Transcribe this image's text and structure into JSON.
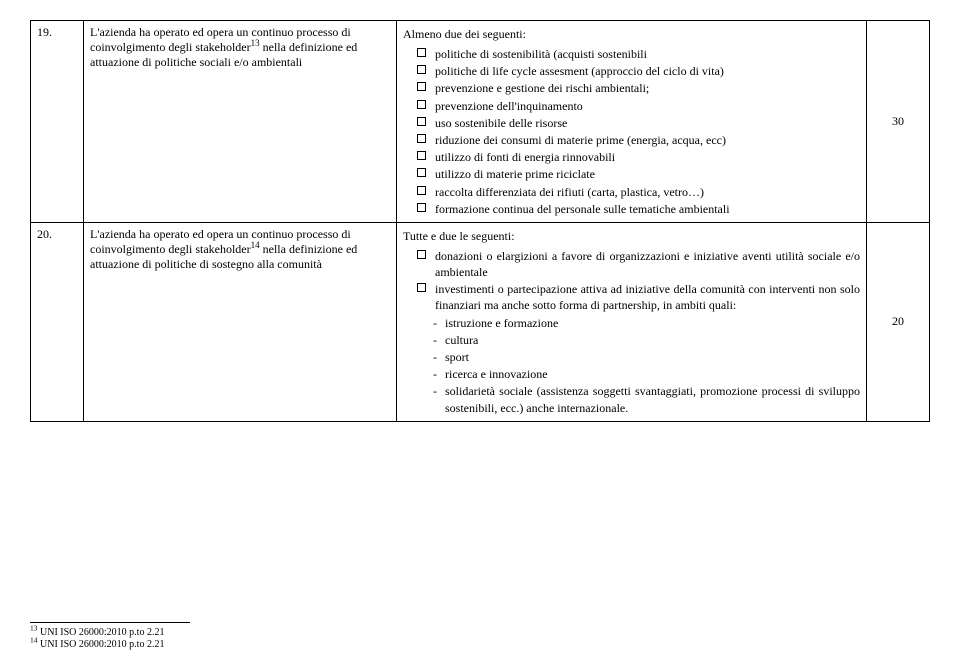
{
  "rows": [
    {
      "num": "19.",
      "desc_prefix": "L'azienda ha operato ed opera un continuo processo di coinvolgimento degli stakeholder",
      "desc_sup": "13",
      "desc_suffix": " nella definizione ed attuazione di politiche sociali e/o ambientali",
      "detail_heading": "Almeno due dei seguenti:",
      "detail_items": [
        "politiche di sostenibilità (acquisti sostenibili",
        "politiche di life cycle assesment (approccio del ciclo di vita)",
        "prevenzione e gestione dei rischi ambientali;",
        "prevenzione dell'inquinamento",
        "uso sostenibile delle risorse",
        "riduzione dei consumi di materie prime (energia, acqua, ecc)",
        "utilizzo di fonti di energia rinnovabili",
        "utilizzo di materie prime riciclate",
        "raccolta differenziata dei rifiuti (carta, plastica, vetro…)",
        "formazione continua del personale sulle tematiche ambientali"
      ],
      "score": "30"
    },
    {
      "num": "20.",
      "desc_prefix": "L'azienda ha operato ed opera un continuo processo di coinvolgimento degli stakeholder",
      "desc_sup": "14",
      "desc_suffix": " nella definizione ed attuazione di politiche di sostegno alla comunità",
      "detail_heading": "Tutte e due le seguenti:",
      "detail_items": [
        "donazioni o elargizioni a favore di organizzazioni e iniziative aventi utilità sociale e/o ambientale",
        "investimenti o partecipazione attiva ad iniziative della comunità con interventi non solo finanziari ma anche sotto forma di partnership, in ambiti quali:"
      ],
      "detail_sub_items": [
        "istruzione e formazione",
        "cultura",
        "sport",
        "ricerca e innovazione",
        "solidarietà sociale (assistenza soggetti svantaggiati, promozione processi di sviluppo sostenibili, ecc.) anche internazionale."
      ],
      "score": "20"
    }
  ],
  "footnotes": [
    {
      "num": "13",
      "text": " UNI ISO 26000:2010 p.to 2.21"
    },
    {
      "num": "14",
      "text": " UNI ISO 26000:2010 p.to 2.21"
    }
  ]
}
